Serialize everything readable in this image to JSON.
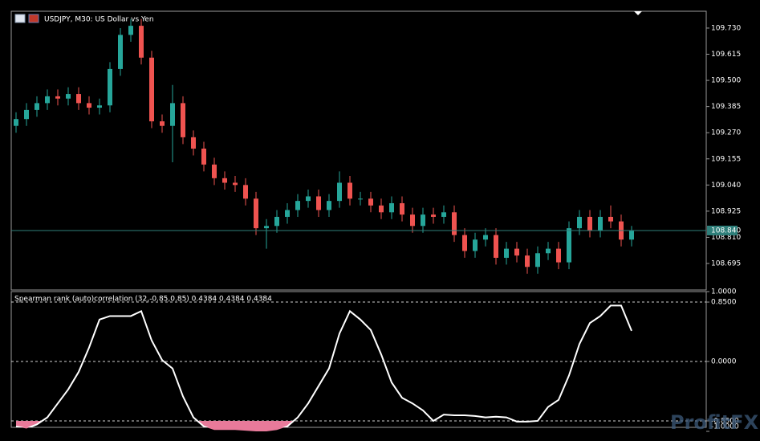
{
  "chart_data": [
    {
      "type": "candlestick",
      "title": "USDJPY, M30:  US Dollar vs Yen",
      "open": [
        109.3,
        109.33,
        109.37,
        109.4,
        109.43,
        109.42,
        109.44,
        109.4,
        109.38,
        109.39,
        109.55,
        109.7,
        109.74,
        109.6,
        109.32,
        109.3,
        109.4,
        109.25,
        109.2,
        109.13,
        109.07,
        109.05,
        109.04,
        108.98,
        108.85,
        108.86,
        108.9,
        108.93,
        108.97,
        108.99,
        108.93,
        108.97,
        109.05,
        108.98,
        108.98,
        108.95,
        108.92,
        108.96,
        108.91,
        108.86,
        108.91,
        108.9,
        108.92,
        108.82,
        108.75,
        108.8,
        108.82,
        108.72,
        108.76,
        108.73,
        108.68,
        108.74,
        108.76,
        108.7,
        108.85,
        108.9,
        108.84,
        108.9,
        108.88,
        108.8
      ],
      "high": [
        109.36,
        109.4,
        109.43,
        109.46,
        109.46,
        109.47,
        109.47,
        109.43,
        109.42,
        109.58,
        109.73,
        109.77,
        109.77,
        109.63,
        109.35,
        109.48,
        109.43,
        109.28,
        109.23,
        109.16,
        109.1,
        109.08,
        109.07,
        109.01,
        108.89,
        108.93,
        108.96,
        109.0,
        109.02,
        109.02,
        109.0,
        109.1,
        109.08,
        109.01,
        109.01,
        108.98,
        108.99,
        108.99,
        108.94,
        108.94,
        108.94,
        108.95,
        108.95,
        108.85,
        108.83,
        108.85,
        108.85,
        108.79,
        108.79,
        108.76,
        108.77,
        108.79,
        108.79,
        108.88,
        108.93,
        108.93,
        108.93,
        108.95,
        108.91,
        108.86
      ],
      "low": [
        109.27,
        109.3,
        109.34,
        109.37,
        109.39,
        109.39,
        109.37,
        109.35,
        109.35,
        109.36,
        109.52,
        109.67,
        109.57,
        109.29,
        109.27,
        109.14,
        109.22,
        109.17,
        109.1,
        109.04,
        109.02,
        109.01,
        108.95,
        108.82,
        108.76,
        108.83,
        108.87,
        108.9,
        108.94,
        108.9,
        108.9,
        108.94,
        108.95,
        108.95,
        108.92,
        108.89,
        108.89,
        108.88,
        108.83,
        108.83,
        108.87,
        108.87,
        108.79,
        108.72,
        108.72,
        108.77,
        108.69,
        108.69,
        108.7,
        108.65,
        108.65,
        108.71,
        108.67,
        108.67,
        108.82,
        108.81,
        108.81,
        108.85,
        108.77,
        108.77
      ],
      "close": [
        109.33,
        109.37,
        109.4,
        109.43,
        109.42,
        109.44,
        109.4,
        109.38,
        109.39,
        109.55,
        109.7,
        109.74,
        109.6,
        109.32,
        109.3,
        109.4,
        109.25,
        109.2,
        109.13,
        109.07,
        109.05,
        109.04,
        108.98,
        108.85,
        108.86,
        108.9,
        108.93,
        108.97,
        108.99,
        108.93,
        108.97,
        109.05,
        108.98,
        108.98,
        108.95,
        108.92,
        108.96,
        108.91,
        108.86,
        108.91,
        108.9,
        108.92,
        108.82,
        108.75,
        108.8,
        108.82,
        108.72,
        108.76,
        108.73,
        108.68,
        108.74,
        108.76,
        108.7,
        108.85,
        108.9,
        108.84,
        108.9,
        108.88,
        108.8,
        108.84
      ],
      "up_color": "#26a69a",
      "down_color": "#ef5350",
      "ylim": [
        108.582,
        109.804
      ],
      "yticks": [
        {
          "value": 109.73,
          "label": "109.730"
        },
        109.615,
        {
          "value": 109.5,
          "label": "109.500"
        },
        109.385,
        {
          "value": 109.27,
          "label": "109.270"
        },
        109.155,
        {
          "value": 109.04,
          "label": "109.040"
        },
        108.925,
        {
          "value": 108.81,
          "label": "108.810"
        },
        108.695
      ],
      "last_price": {
        "value": 108.84,
        "label": "108.840"
      },
      "last_price_color": "#2f7f7a"
    },
    {
      "type": "line",
      "title": "Spearman rank (auto)correlation (32,-0.85,0.85) 0.4384 0.4384 0.4384",
      "values": [
        -0.93,
        -0.96,
        -0.9,
        -0.8,
        -0.6,
        -0.4,
        -0.15,
        0.2,
        0.6,
        0.65,
        0.65,
        0.65,
        0.72,
        0.3,
        0.02,
        -0.1,
        -0.5,
        -0.8,
        -0.93,
        -0.98,
        -0.98,
        -0.98,
        -0.99,
        -1.0,
        -1.0,
        -0.98,
        -0.93,
        -0.8,
        -0.6,
        -0.35,
        -0.1,
        0.4,
        0.72,
        0.6,
        0.45,
        0.1,
        -0.3,
        -0.52,
        -0.6,
        -0.7,
        -0.85,
        -0.76,
        -0.77,
        -0.77,
        -0.78,
        -0.8,
        -0.79,
        -0.8,
        -0.86,
        -0.86,
        -0.85,
        -0.65,
        -0.55,
        -0.2,
        0.25,
        0.55,
        0.65,
        0.8,
        0.8,
        0.4384
      ],
      "color": "#ffffff",
      "fill_color": "#e87a9a",
      "fill_below": -0.85,
      "ylim": [
        -1,
        1
      ],
      "yticks": [
        {
          "value": 1,
          "label": "1.0000"
        },
        {
          "value": 0.85,
          "label": "0.8500"
        },
        {
          "value": 0,
          "label": "0.0000"
        },
        {
          "value": -0.85,
          "label": "-0.8500"
        },
        {
          "value": -1,
          "label": "-1.0000"
        }
      ],
      "levels": [
        0.85,
        0,
        -0.85
      ]
    }
  ],
  "watermark": "ProfitFX"
}
